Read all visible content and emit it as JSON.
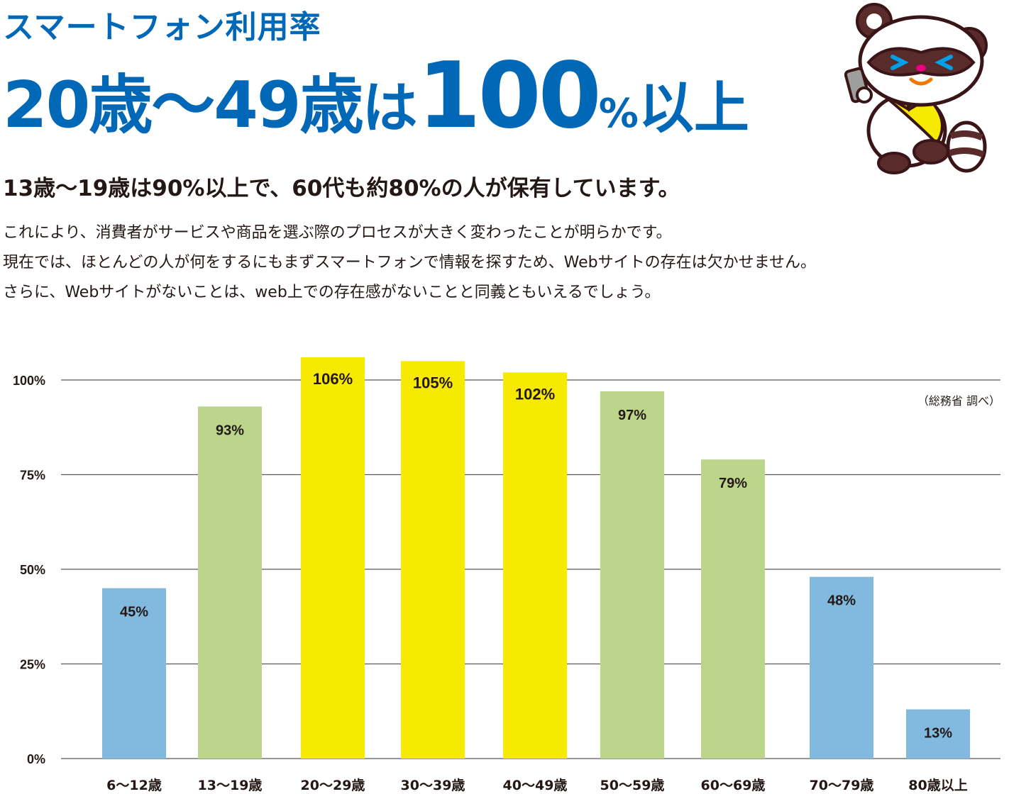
{
  "headline": {
    "line1": "スマートフォン利用率",
    "part_age": "20歳〜49歳",
    "part_ha": "は",
    "part_num": "100",
    "part_pct": "%",
    "part_ijo": "以上"
  },
  "subhead": "13歳〜19歳は90%以上で、60代も約80%の人が保有しています。",
  "body": [
    "これにより、消費者がサービスや商品を選ぶ際のプロセスが大きく変わったことが明らかです。",
    "現在では、ほとんどの人が何をするにもまずスマートフォンで情報を探すため、Webサイトの存在は欠かせません。",
    "さらに、Webサイトがないことは、web上での存在感がないことと同義ともいえるでしょう。"
  ],
  "source_note": "（総務省 調べ）",
  "colors": {
    "brand_blue": "#0068b7",
    "bar_blue": "#82b9df",
    "bar_green": "#bbd68b",
    "bar_yellow": "#f6ea00",
    "grid": "#595757"
  },
  "mascot": {
    "icon": "raccoon-mascot-with-smartphone-icon"
  },
  "chart_data": {
    "type": "bar",
    "categories": [
      "6〜12歳",
      "13〜19歳",
      "20〜29歳",
      "30〜39歳",
      "40〜49歳",
      "50〜59歳",
      "60〜69歳",
      "70〜79歳",
      "80歳以上"
    ],
    "values": [
      45,
      93,
      106,
      105,
      102,
      97,
      79,
      48,
      13
    ],
    "labels": [
      "45%",
      "93%",
      "106%",
      "105%",
      "102%",
      "97%",
      "79%",
      "48%",
      "13%"
    ],
    "bar_colors": [
      "#82b9df",
      "#bbd68b",
      "#f6ea00",
      "#f6ea00",
      "#f6ea00",
      "#bbd68b",
      "#bbd68b",
      "#82b9df",
      "#82b9df"
    ],
    "yticks": [
      0,
      25,
      50,
      75,
      100
    ],
    "ytick_labels": [
      "0%",
      "25%",
      "50%",
      "75%",
      "100%"
    ],
    "ylim": [
      0,
      106
    ],
    "grid": true,
    "title": "",
    "xlabel": "",
    "ylabel": ""
  }
}
